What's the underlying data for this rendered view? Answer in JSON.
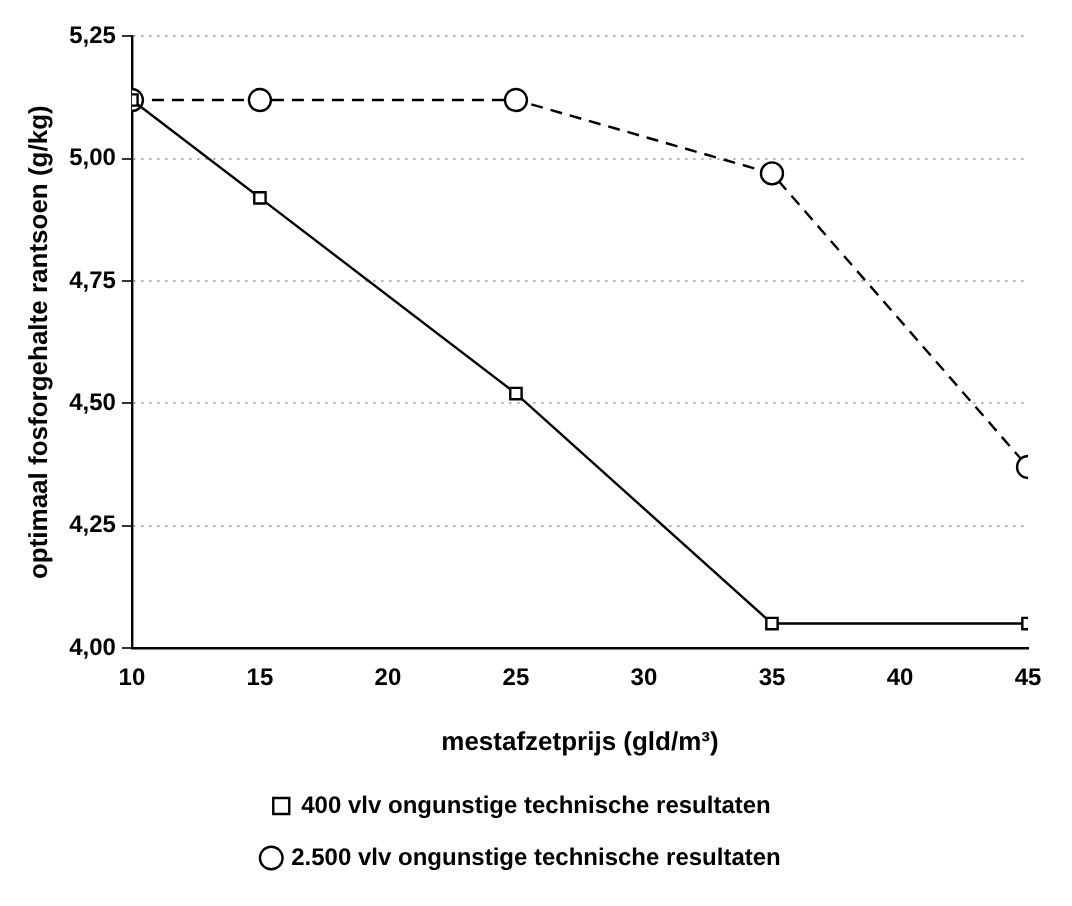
{
  "chart_data": {
    "type": "line",
    "xlabel": "mestafzetprijs (gld/m³)",
    "ylabel": "optimaal fosforgehalte rantsoen (g/kg)",
    "series": [
      {
        "name": "400 vlv ongunstige technische resultaten",
        "color": "#000000",
        "marker": "square",
        "line_style": "solid",
        "x": [
          10,
          15,
          25,
          35,
          45
        ],
        "values": [
          5.12,
          4.92,
          4.52,
          4.05,
          4.05
        ]
      },
      {
        "name": "2.500 vlv ongunstige technische resultaten",
        "color": "#000000",
        "marker": "circle",
        "line_style": "dashed",
        "x": [
          10,
          15,
          25,
          35,
          45
        ],
        "values": [
          5.12,
          5.12,
          5.12,
          4.97,
          4.37
        ]
      }
    ],
    "xlim": [
      10,
      45
    ],
    "xticks": [
      10,
      15,
      20,
      25,
      30,
      35,
      40,
      45
    ],
    "ylim": [
      4,
      5.25
    ],
    "yticks": [
      {
        "value": 4,
        "label": "4,00"
      },
      {
        "value": 4.25,
        "label": "4,25"
      },
      {
        "value": 4.5,
        "label": "4,50"
      },
      {
        "value": 4.75,
        "label": "4,75"
      },
      {
        "value": 5,
        "label": "5,00"
      },
      {
        "value": 5.25,
        "label": "5,25"
      }
    ],
    "grid": "y",
    "legend": "bottom"
  }
}
